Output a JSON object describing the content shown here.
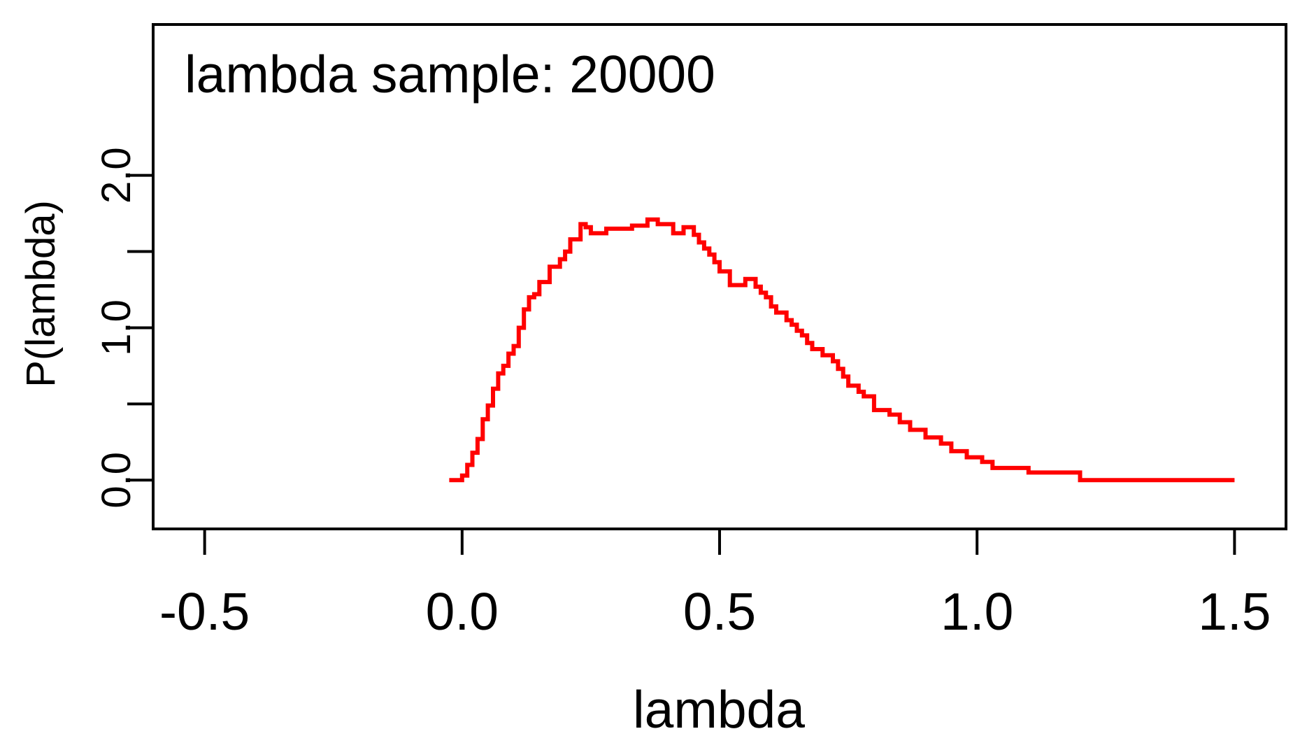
{
  "chart_data": {
    "type": "line",
    "title": "lambda sample: 20000",
    "xlabel": "lambda",
    "ylabel": "P(lambda)",
    "xlim": [
      -0.6,
      1.6
    ],
    "ylim": [
      -0.32,
      2.99
    ],
    "x_ticks": [
      -0.5,
      0.0,
      0.5,
      1.0,
      1.5
    ],
    "x_tick_labels": [
      "-0.5",
      "0.0",
      "0.5",
      "1.0",
      "1.5"
    ],
    "y_ticks": [
      0.0,
      0.5,
      1.0,
      1.5,
      2.0
    ],
    "y_tick_labels": [
      "0.0",
      "",
      "1.0",
      "",
      "2.0"
    ],
    "grid": false,
    "series": [
      {
        "color": "#ff0000",
        "step": true,
        "x": [
          -0.025,
          0.0,
          0.01,
          0.02,
          0.03,
          0.04,
          0.05,
          0.06,
          0.07,
          0.08,
          0.09,
          0.1,
          0.11,
          0.12,
          0.13,
          0.14,
          0.15,
          0.17,
          0.19,
          0.2,
          0.21,
          0.23,
          0.24,
          0.25,
          0.26,
          0.28,
          0.3,
          0.33,
          0.36,
          0.38,
          0.41,
          0.43,
          0.45,
          0.46,
          0.47,
          0.48,
          0.49,
          0.5,
          0.52,
          0.55,
          0.57,
          0.58,
          0.59,
          0.6,
          0.61,
          0.63,
          0.64,
          0.65,
          0.66,
          0.67,
          0.68,
          0.7,
          0.72,
          0.73,
          0.74,
          0.75,
          0.77,
          0.78,
          0.8,
          0.83,
          0.85,
          0.87,
          0.9,
          0.93,
          0.95,
          0.98,
          1.01,
          1.03,
          1.1,
          1.2,
          1.5
        ],
        "y": [
          0.0,
          0.03,
          0.1,
          0.18,
          0.27,
          0.4,
          0.49,
          0.6,
          0.7,
          0.75,
          0.83,
          0.88,
          1.0,
          1.12,
          1.2,
          1.22,
          1.3,
          1.4,
          1.45,
          1.5,
          1.58,
          1.68,
          1.66,
          1.62,
          1.62,
          1.65,
          1.65,
          1.67,
          1.71,
          1.68,
          1.62,
          1.66,
          1.61,
          1.56,
          1.52,
          1.48,
          1.43,
          1.37,
          1.28,
          1.32,
          1.27,
          1.23,
          1.2,
          1.14,
          1.1,
          1.05,
          1.02,
          0.98,
          0.95,
          0.9,
          0.86,
          0.82,
          0.78,
          0.73,
          0.68,
          0.62,
          0.58,
          0.55,
          0.46,
          0.43,
          0.38,
          0.33,
          0.28,
          0.24,
          0.19,
          0.15,
          0.12,
          0.08,
          0.05,
          0.0,
          0.0
        ]
      }
    ]
  }
}
